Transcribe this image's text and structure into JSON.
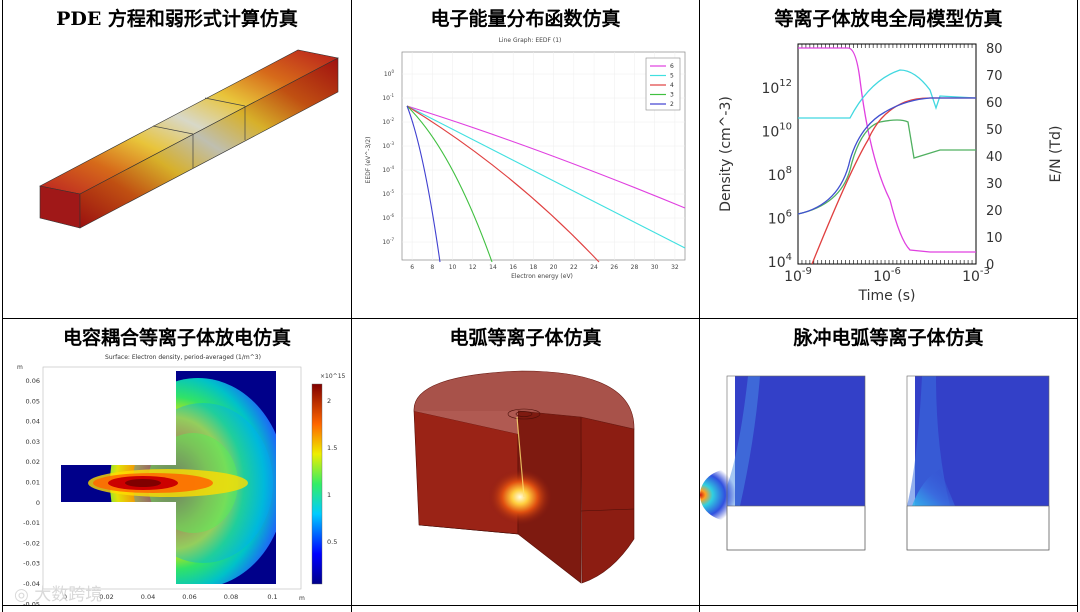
{
  "panels": [
    {
      "title": "PDE 方程和弱形式计算仿真"
    },
    {
      "title": "电子能量分布函数仿真"
    },
    {
      "title": "等离子体放电全局模型仿真"
    },
    {
      "title": "电容耦合等离子体放电仿真"
    },
    {
      "title": "电弧等离子体仿真"
    },
    {
      "title": "脉冲电弧等离子体仿真"
    }
  ],
  "eedf": {
    "plot_title": "Line Graph: EEDF (1)",
    "xlabel": "Electron energy (eV)",
    "ylabel": "EEDF (eV^-3/2)",
    "xticks": [
      "6",
      "8",
      "10",
      "12",
      "14",
      "16",
      "18",
      "20",
      "22",
      "24",
      "26",
      "28",
      "30",
      "32"
    ],
    "yticks": [
      "10^0",
      "10^-1",
      "10^-2",
      "10^-3",
      "10^-4",
      "10^-5",
      "10^-6",
      "10^-7"
    ],
    "legend": [
      {
        "label": "6",
        "color": "#e040e0"
      },
      {
        "label": "5",
        "color": "#40e0e0"
      },
      {
        "label": "4",
        "color": "#e04040"
      },
      {
        "label": "3",
        "color": "#40c040"
      },
      {
        "label": "2",
        "color": "#4040d0"
      }
    ]
  },
  "global": {
    "xlabel": "Time (s)",
    "ylabel_left": "Density (cm^-3)",
    "ylabel_right": "E/N (Td)",
    "xticks": [
      "10^-9",
      "10^-6",
      "10^-3"
    ],
    "yticks_left": [
      "10^12",
      "10^10",
      "10^8",
      "10^6",
      "10^4"
    ],
    "yticks_right": [
      "80",
      "70",
      "60",
      "50",
      "40",
      "30",
      "20",
      "10",
      "0"
    ]
  },
  "ccp": {
    "plot_title": "Surface: Electron density, period-averaged (1/m^3)",
    "y_unit": "m",
    "x_unit": "m",
    "yticks": [
      "0.06",
      "0.05",
      "0.04",
      "0.03",
      "0.02",
      "0.01",
      "0",
      "-0.01",
      "-0.02",
      "-0.03",
      "-0.04",
      "-0.05"
    ],
    "xticks": [
      "0",
      "0.02",
      "0.04",
      "0.06",
      "0.08",
      "0.1"
    ],
    "colorbar_exp": "×10^15",
    "colorbar_ticks": [
      "2",
      "1.5",
      "1",
      "0.5"
    ]
  },
  "watermark": "大数跨境"
}
